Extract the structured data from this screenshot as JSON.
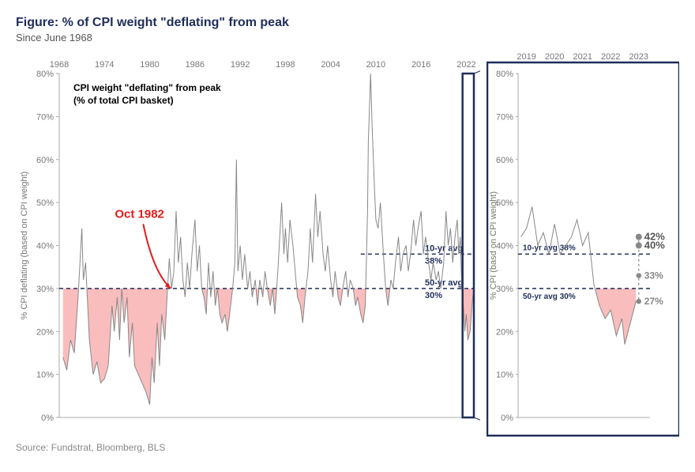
{
  "title": "Figure: % of CPI weight \"deflating\" from peak",
  "subtitle": "Since June 1968",
  "source": "Source: Fundstrat, Bloomberg, BLS",
  "main": {
    "type": "line",
    "ylabel": "% CPI deflating (based on CPI weight)",
    "ylim": [
      0,
      80
    ],
    "ytick_step": 10,
    "ytick_suffix": "%",
    "x_start_year": 1968,
    "x_end_year": 2023,
    "x_ticks": [
      1968,
      1974,
      1980,
      1986,
      1992,
      1998,
      2004,
      2010,
      2016,
      2022
    ],
    "box_label_line1": "CPI weight \"deflating\" from peak",
    "box_label_line2": "(% of total CPI basket)",
    "callout_text": "Oct 1982",
    "callout_year": 1982.8,
    "ref_lines": [
      {
        "value": 30,
        "label": "50-yr avg 30%"
      },
      {
        "value": 38,
        "label": "10-yr avg 38%"
      }
    ],
    "zoom_box_from_year": 2021.5,
    "series": [
      [
        1968.5,
        14
      ],
      [
        1969,
        11
      ],
      [
        1969.5,
        18
      ],
      [
        1970,
        15
      ],
      [
        1970.5,
        28
      ],
      [
        1971,
        44
      ],
      [
        1971.2,
        32
      ],
      [
        1971.5,
        36
      ],
      [
        1972,
        18
      ],
      [
        1972.5,
        10
      ],
      [
        1973,
        13
      ],
      [
        1973.5,
        8
      ],
      [
        1974,
        9
      ],
      [
        1974.5,
        12
      ],
      [
        1975,
        26
      ],
      [
        1975.3,
        20
      ],
      [
        1975.7,
        28
      ],
      [
        1976,
        18
      ],
      [
        1976.3,
        30
      ],
      [
        1976.6,
        22
      ],
      [
        1977,
        28
      ],
      [
        1977.3,
        14
      ],
      [
        1977.7,
        22
      ],
      [
        1978,
        12
      ],
      [
        1978.5,
        10
      ],
      [
        1979,
        8
      ],
      [
        1979.5,
        6
      ],
      [
        1980,
        3
      ],
      [
        1980.3,
        14
      ],
      [
        1980.6,
        8
      ],
      [
        1981,
        22
      ],
      [
        1981.3,
        12
      ],
      [
        1981.6,
        24
      ],
      [
        1982,
        18
      ],
      [
        1982.3,
        28
      ],
      [
        1982.6,
        37
      ],
      [
        1982.9,
        30
      ],
      [
        1983.2,
        34
      ],
      [
        1983.5,
        48
      ],
      [
        1983.8,
        36
      ],
      [
        1984.1,
        42
      ],
      [
        1984.4,
        32
      ],
      [
        1984.7,
        28
      ],
      [
        1985,
        36
      ],
      [
        1985.3,
        30
      ],
      [
        1985.6,
        38
      ],
      [
        1986,
        46
      ],
      [
        1986.3,
        34
      ],
      [
        1986.6,
        40
      ],
      [
        1986.9,
        30
      ],
      [
        1987.2,
        28
      ],
      [
        1987.5,
        24
      ],
      [
        1987.8,
        36
      ],
      [
        1988.1,
        28
      ],
      [
        1988.4,
        34
      ],
      [
        1988.7,
        26
      ],
      [
        1989,
        30
      ],
      [
        1989.3,
        24
      ],
      [
        1989.6,
        22
      ],
      [
        1990,
        24
      ],
      [
        1990.3,
        20
      ],
      [
        1990.6,
        24
      ],
      [
        1991,
        30
      ],
      [
        1991.3,
        36
      ],
      [
        1991.5,
        60
      ],
      [
        1991.7,
        34
      ],
      [
        1992,
        40
      ],
      [
        1992.3,
        32
      ],
      [
        1992.6,
        38
      ],
      [
        1993,
        30
      ],
      [
        1993.3,
        34
      ],
      [
        1993.6,
        28
      ],
      [
        1994,
        32
      ],
      [
        1994.3,
        26
      ],
      [
        1994.6,
        32
      ],
      [
        1995,
        28
      ],
      [
        1995.3,
        34
      ],
      [
        1995.6,
        30
      ],
      [
        1996,
        26
      ],
      [
        1996.3,
        30
      ],
      [
        1996.6,
        24
      ],
      [
        1997,
        34
      ],
      [
        1997.5,
        50
      ],
      [
        1997.8,
        38
      ],
      [
        1998,
        44
      ],
      [
        1998.3,
        36
      ],
      [
        1998.6,
        46
      ],
      [
        1999,
        40
      ],
      [
        1999.3,
        34
      ],
      [
        1999.6,
        28
      ],
      [
        2000,
        26
      ],
      [
        2000.3,
        22
      ],
      [
        2000.6,
        28
      ],
      [
        2001,
        34
      ],
      [
        2001.3,
        44
      ],
      [
        2001.6,
        36
      ],
      [
        2002,
        52
      ],
      [
        2002.3,
        42
      ],
      [
        2002.6,
        48
      ],
      [
        2003,
        38
      ],
      [
        2003.3,
        34
      ],
      [
        2003.6,
        40
      ],
      [
        2004,
        32
      ],
      [
        2004.3,
        28
      ],
      [
        2004.6,
        34
      ],
      [
        2005,
        28
      ],
      [
        2005.3,
        26
      ],
      [
        2005.6,
        30
      ],
      [
        2006,
        34
      ],
      [
        2006.3,
        28
      ],
      [
        2006.6,
        32
      ],
      [
        2007,
        30
      ],
      [
        2007.3,
        26
      ],
      [
        2007.6,
        28
      ],
      [
        2008,
        24
      ],
      [
        2008.3,
        22
      ],
      [
        2008.6,
        26
      ],
      [
        2008.9,
        48
      ],
      [
        2009,
        64
      ],
      [
        2009.3,
        80
      ],
      [
        2009.5,
        68
      ],
      [
        2009.8,
        54
      ],
      [
        2010,
        46
      ],
      [
        2010.3,
        44
      ],
      [
        2010.6,
        50
      ],
      [
        2011,
        38
      ],
      [
        2011.3,
        30
      ],
      [
        2011.6,
        26
      ],
      [
        2012,
        32
      ],
      [
        2012.3,
        30
      ],
      [
        2012.6,
        36
      ],
      [
        2013,
        42
      ],
      [
        2013.3,
        34
      ],
      [
        2013.6,
        38
      ],
      [
        2014,
        40
      ],
      [
        2014.3,
        34
      ],
      [
        2014.6,
        38
      ],
      [
        2015,
        46
      ],
      [
        2015.3,
        40
      ],
      [
        2015.6,
        44
      ],
      [
        2016,
        48
      ],
      [
        2016.3,
        38
      ],
      [
        2016.6,
        42
      ],
      [
        2017,
        36
      ],
      [
        2017.3,
        32
      ],
      [
        2017.6,
        36
      ],
      [
        2018,
        32
      ],
      [
        2018.3,
        34
      ],
      [
        2018.6,
        30
      ],
      [
        2019,
        36
      ],
      [
        2019.3,
        48
      ],
      [
        2019.6,
        40
      ],
      [
        2019.9,
        44
      ],
      [
        2020.2,
        36
      ],
      [
        2020.5,
        42
      ],
      [
        2020.8,
        46
      ],
      [
        2021,
        38
      ],
      [
        2021.2,
        42
      ],
      [
        2021.4,
        30
      ],
      [
        2021.6,
        26
      ],
      [
        2021.8,
        20
      ],
      [
        2022,
        24
      ],
      [
        2022.2,
        18
      ],
      [
        2022.5,
        20
      ],
      [
        2022.8,
        27
      ],
      [
        2023,
        30
      ]
    ],
    "shade_threshold": 30,
    "colors": {
      "line": "#888888",
      "shade": "#f7a7a7",
      "ref": "#1f2d5a",
      "callout": "#e31b1b",
      "axis": "#777777"
    }
  },
  "detail": {
    "type": "line",
    "ylabel": "% CPI (basd on CPI weight)",
    "ylim": [
      0,
      80
    ],
    "ytick_step": 10,
    "ytick_suffix": "%",
    "x_start_year": 2018.7,
    "x_end_year": 2023.4,
    "x_ticks": [
      2019,
      2020,
      2021,
      2022,
      2023
    ],
    "ref_lines": [
      {
        "value": 30,
        "label": "50-yr avg 30%"
      },
      {
        "value": 38,
        "label": "10-yr avg 38%"
      }
    ],
    "series": [
      [
        2018.8,
        42
      ],
      [
        2019,
        44
      ],
      [
        2019.2,
        49
      ],
      [
        2019.4,
        40
      ],
      [
        2019.6,
        43
      ],
      [
        2019.8,
        38
      ],
      [
        2020,
        45
      ],
      [
        2020.2,
        38
      ],
      [
        2020.4,
        40
      ],
      [
        2020.6,
        42
      ],
      [
        2020.8,
        46
      ],
      [
        2021,
        40
      ],
      [
        2021.2,
        43
      ],
      [
        2021.4,
        31
      ],
      [
        2021.6,
        26
      ],
      [
        2021.8,
        23
      ],
      [
        2022,
        25
      ],
      [
        2022.2,
        19
      ],
      [
        2022.4,
        23
      ],
      [
        2022.5,
        17
      ],
      [
        2022.7,
        22
      ],
      [
        2022.9,
        27
      ]
    ],
    "shade_threshold": 30,
    "projection_points": [
      {
        "y": 27,
        "label": "27%",
        "emphasize": false
      },
      {
        "y": 33,
        "label": "33%",
        "emphasize": false
      },
      {
        "y": 40,
        "label": "40%",
        "emphasize": true
      },
      {
        "y": 42,
        "label": "42%",
        "emphasize": true
      }
    ],
    "projection_x": 2023.0
  }
}
